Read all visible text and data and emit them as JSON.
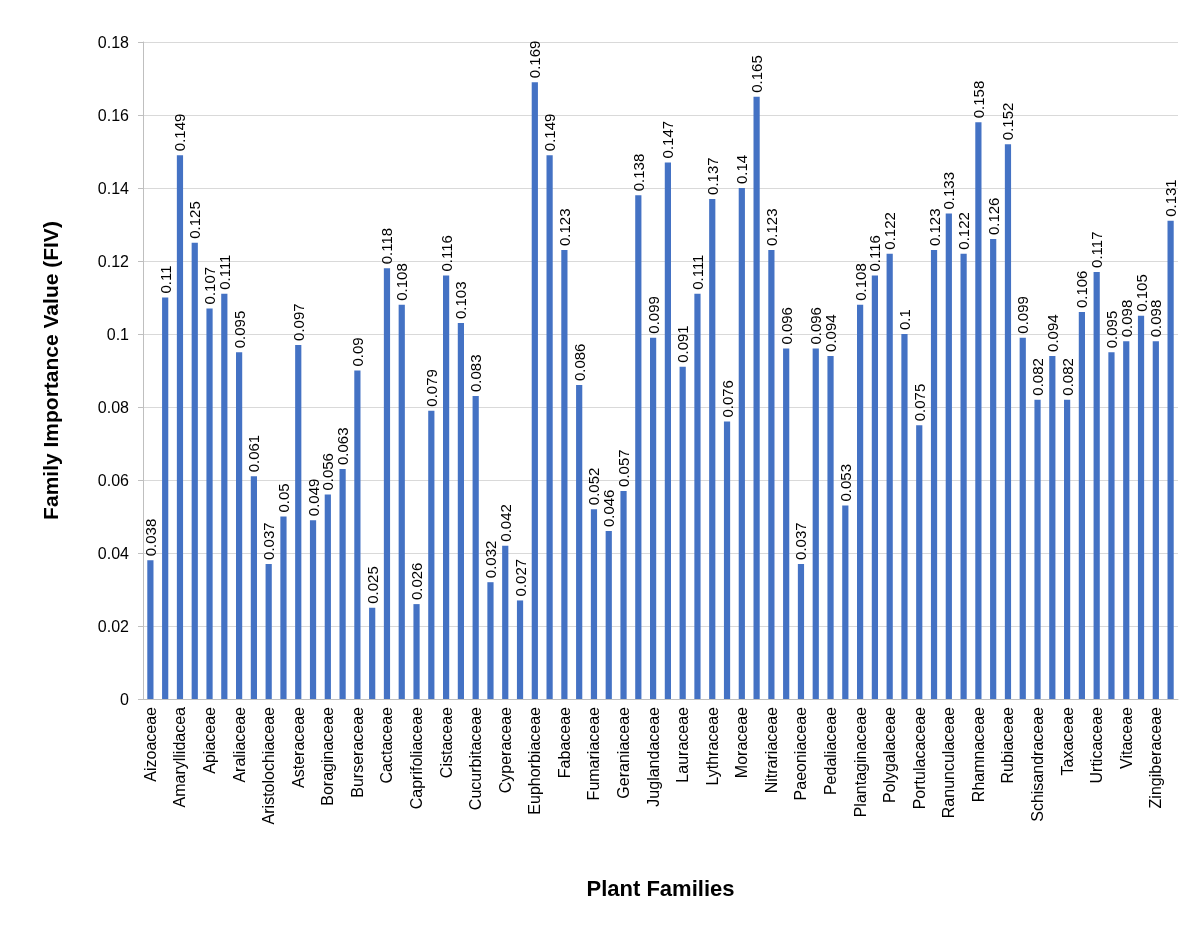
{
  "chart_data": {
    "type": "bar",
    "xlabel": "Plant Families",
    "ylabel": "Family Importance Value (FIV)",
    "categories": [
      "Aizoaceae",
      null,
      "Amaryllidacea",
      null,
      "Apiaceae",
      null,
      "Araliaceae",
      null,
      "Aristolochiaceae",
      null,
      "Asteraceae",
      null,
      "Boraginaceae",
      null,
      "Burseraceae",
      null,
      "Cactaceae",
      null,
      "Caprifoliaceae",
      null,
      "Cistaceae",
      null,
      "Cucurbitaceae",
      null,
      "Cyperaceae",
      null,
      "Euphorbiaceae",
      null,
      "Fabaceae",
      null,
      "Fumariaceae",
      null,
      "Geraniaceae",
      null,
      "Juglandaceae",
      null,
      "Lauraceae",
      null,
      "Lythraceae",
      null,
      "Moraceae",
      null,
      "Nitrariaceae",
      null,
      "Paeoniaceae",
      null,
      "Pedaliaceae",
      null,
      "Plantaginaceae",
      null,
      "Polygalaceae",
      null,
      "Portulacaceae",
      null,
      "Ranunculaceae",
      null,
      "Rhamnaceae",
      null,
      "Rubiaceae",
      null,
      "Schisandraceae",
      null,
      "Taxaceae",
      null,
      "Urticaceae",
      null,
      "Vitaceae",
      null,
      "Zingiberaceae",
      null
    ],
    "values": [
      0.038,
      0.11,
      0.149,
      0.125,
      0.107,
      0.111,
      0.095,
      0.061,
      0.037,
      0.05,
      0.097,
      0.049,
      0.056,
      0.063,
      0.09,
      0.025,
      0.118,
      0.108,
      0.026,
      0.079,
      0.116,
      0.103,
      0.083,
      0.032,
      0.042,
      0.027,
      0.169,
      0.149,
      0.123,
      0.086,
      0.052,
      0.046,
      0.057,
      0.138,
      0.099,
      0.147,
      0.091,
      0.111,
      0.137,
      0.076,
      0.14,
      0.165,
      0.123,
      0.096,
      0.037,
      0.096,
      0.094,
      0.053,
      0.108,
      0.116,
      0.122,
      0.1,
      0.075,
      0.123,
      0.133,
      0.122,
      0.158,
      0.126,
      0.152,
      0.099,
      0.082,
      0.094,
      0.082,
      0.106,
      0.117,
      0.095,
      0.098,
      0.105,
      0.098,
      0.131
    ],
    "color": "#4472c4",
    "ylim": [
      0,
      0.18
    ],
    "yticks": [
      0,
      0.02,
      0.04,
      0.06,
      0.08,
      0.1,
      0.12,
      0.14,
      0.16,
      0.18
    ],
    "grid": "y",
    "data_labels": true
  }
}
